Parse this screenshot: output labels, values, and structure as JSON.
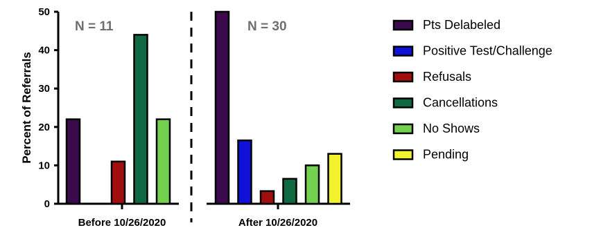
{
  "chart_data": {
    "type": "bar",
    "ylabel": "Percent of Referrals",
    "xlabel": "",
    "ylim": [
      0,
      50
    ],
    "yticks": [
      0,
      10,
      20,
      30,
      40,
      50
    ],
    "grid": false,
    "legend_position": "right",
    "series": [
      {
        "name": "Pts Delabeled",
        "color": "#3b0a4d"
      },
      {
        "name": "Positive Test/Challenge",
        "color": "#1010d8"
      },
      {
        "name": "Refusals",
        "color": "#a00e0e"
      },
      {
        "name": "Cancellations",
        "color": "#0f6a44"
      },
      {
        "name": "No Shows",
        "color": "#74d04f"
      },
      {
        "name": "Pending",
        "color": "#f2f22a"
      }
    ],
    "groups": [
      {
        "label": "Before 10/26/2020",
        "n_label": "N = 11",
        "values": [
          22,
          0,
          11,
          44,
          22,
          0
        ]
      },
      {
        "label": "After 10/26/2020",
        "n_label": "N = 30",
        "values": [
          50,
          16.5,
          3.3,
          6.5,
          10,
          13
        ]
      }
    ]
  }
}
